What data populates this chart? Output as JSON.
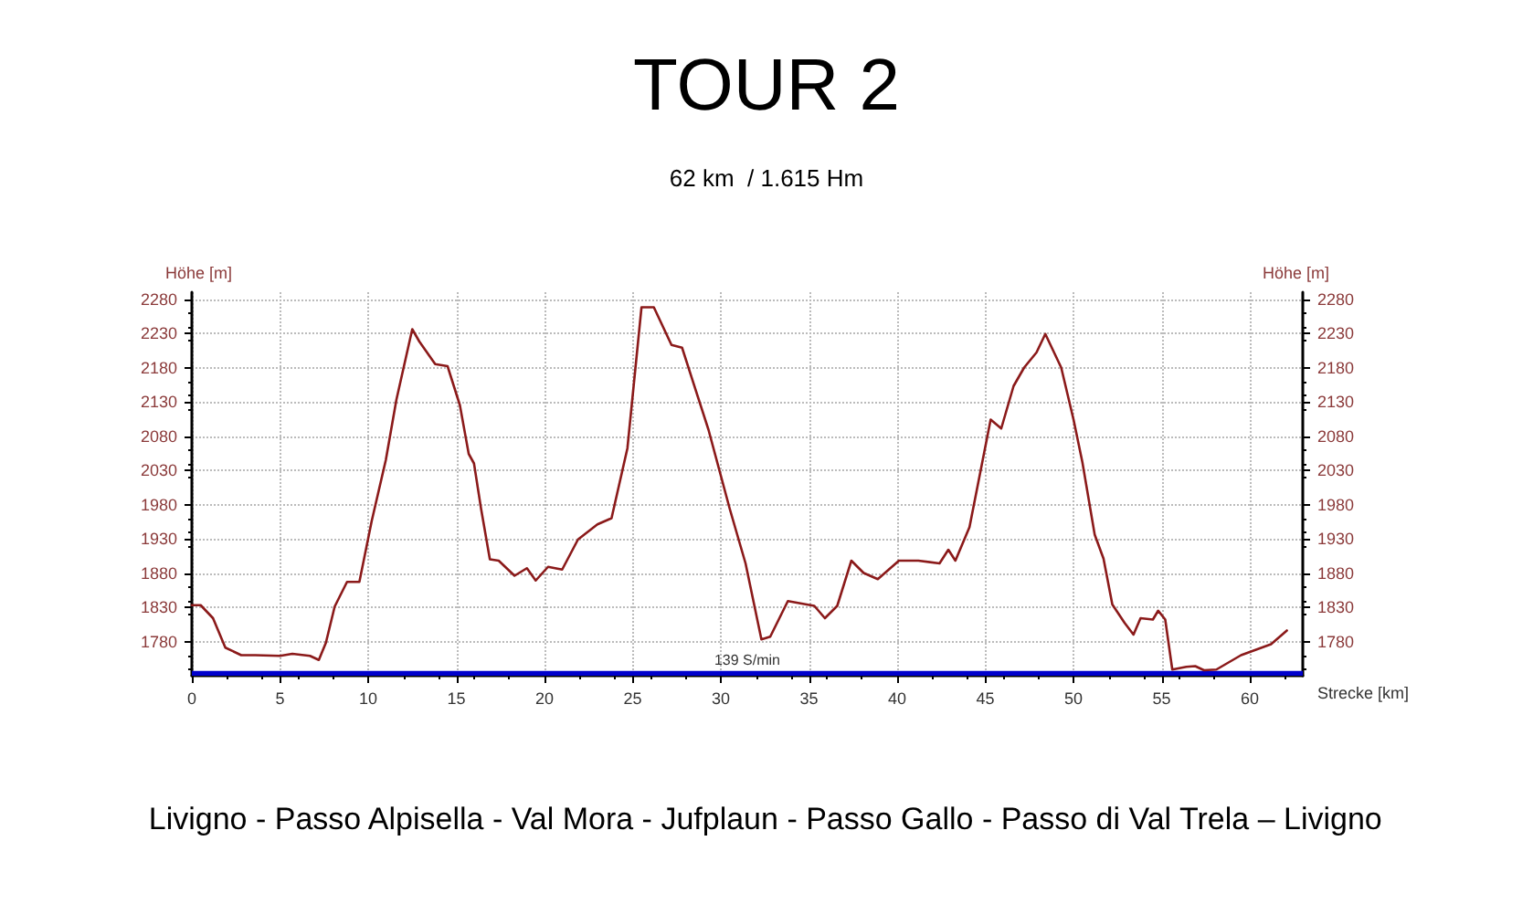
{
  "chart_data": {
    "type": "line",
    "title": "TOUR 2",
    "subtitle": "62 km  / 1.615 Hm",
    "xlabel": "Strecke [km]",
    "ylabel": "Höhe [m]",
    "y2label": "Höhe [m]",
    "annotations": [
      "Livigno - Passo Alpisella - Val Mora - Jufplaun - Passo Gallo - Passo di Val Trela – Livigno"
    ],
    "x": [
      0,
      0.5,
      1.2,
      1.9,
      2.8,
      3.6,
      5,
      5.7,
      6.7,
      7.2,
      7.6,
      8.1,
      8.8,
      9.5,
      10.2,
      11.0,
      11.6,
      12.5,
      12.9,
      13.8,
      14.5,
      15.2,
      15.7,
      16.0,
      16.4,
      16.9,
      17.4,
      18.3,
      19,
      19.5,
      20.2,
      21.0,
      21.9,
      23,
      23.8,
      24.7,
      25.5,
      26.2,
      27.2,
      27.8,
      29.3,
      30.5,
      31.4,
      32.3,
      32.8,
      33.8,
      35.3,
      35.9,
      36.6,
      37.4,
      38.1,
      38.9,
      40.1,
      41.2,
      42.4,
      42.9,
      43.3,
      44.1,
      45.3,
      45.9,
      46.6,
      47.2,
      47.9,
      48.4,
      49.3,
      50,
      50.5,
      51.2,
      51.7,
      52.2,
      52.9,
      53.4,
      53.8,
      54.5,
      54.8,
      55.2,
      55.6,
      56.4,
      56.9,
      57.4,
      58.1,
      59.5,
      61.2,
      62.1
    ],
    "series": [
      {
        "color": "#8b1a1a",
        "values": [
          1833,
          1833,
          1814,
          1771,
          1760,
          1760,
          1759,
          1762,
          1759,
          1753,
          1778,
          1831,
          1867,
          1867,
          1956,
          2045,
          2133,
          2236,
          2218,
          2185,
          2182,
          2125,
          2054,
          2040,
          1974,
          1900,
          1898,
          1876,
          1887,
          1869,
          1889,
          1885,
          1929,
          1951,
          1960,
          2062,
          2268,
          2268,
          2213,
          2209,
          2089,
          1974,
          1894,
          1783,
          1787,
          1839,
          1832,
          1814,
          1832,
          1898,
          1880,
          1871,
          1898,
          1898,
          1894,
          1914,
          1898,
          1947,
          2104,
          2091,
          2153,
          2180,
          2202,
          2229,
          2180,
          2104,
          2042,
          1936,
          1901,
          1834,
          1807,
          1790,
          1814,
          1812,
          1825,
          1812,
          1739,
          1743,
          1744,
          1738,
          1739,
          1760,
          1776,
          1796
        ]
      }
    ],
    "xlim": [
      0,
      63
    ],
    "xticks": [
      0,
      5,
      10,
      15,
      20,
      25,
      30,
      35,
      40,
      45,
      50,
      55,
      60
    ],
    "ylim": [
      1730,
      2290
    ],
    "yticks": [
      1780,
      1830,
      1880,
      1930,
      1980,
      2030,
      2080,
      2130,
      2180,
      2230,
      2280
    ],
    "y2lim": [
      1730,
      2290
    ],
    "y2ticks": [
      1780,
      1830,
      1880,
      1930,
      1980,
      2030,
      2080,
      2130,
      2180,
      2230,
      2280
    ],
    "bands": [
      {
        "axis": "y",
        "from": 1730,
        "to": 1737,
        "label": "139 S/min",
        "color": "#0000cc"
      }
    ],
    "grid": true,
    "marker": "none",
    "line_style": "solid"
  }
}
